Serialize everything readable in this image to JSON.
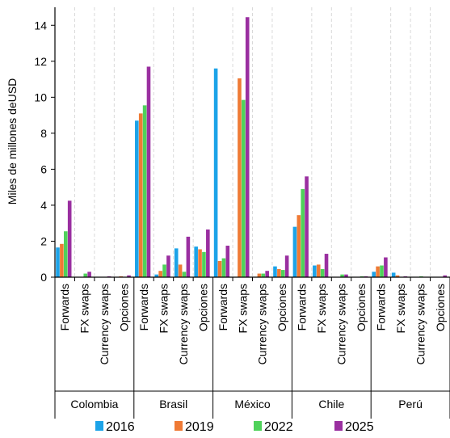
{
  "chart_data": {
    "type": "bar",
    "ylabel": "Miles de millones deUSD",
    "xlabel": "",
    "title": "",
    "ylim": [
      0,
      15
    ],
    "yticks": [
      0,
      2,
      4,
      6,
      8,
      10,
      12,
      14
    ],
    "grid": "vertical dashed",
    "legend_position": "bottom",
    "groups": [
      "Colombia",
      "Brasil",
      "México",
      "Chile",
      "Perú"
    ],
    "instruments": [
      "Forwards",
      "FX swaps",
      "Currency swaps",
      "Opciones"
    ],
    "series": [
      {
        "name": "2016",
        "color": "#1ca3e8",
        "values": [
          [
            1.65,
            0.0,
            0.0,
            0.0
          ],
          [
            8.7,
            0.15,
            1.6,
            1.7
          ],
          [
            11.6,
            0.0,
            0.0,
            0.6
          ],
          [
            2.8,
            0.65,
            0.0,
            0.0
          ],
          [
            0.3,
            0.25,
            0.0,
            0.0
          ]
        ]
      },
      {
        "name": "2019",
        "color": "#ef7a35",
        "values": [
          [
            1.85,
            0.0,
            0.0,
            0.05
          ],
          [
            9.1,
            0.35,
            0.7,
            1.55
          ],
          [
            0.9,
            11.05,
            0.2,
            0.45
          ],
          [
            3.45,
            0.7,
            0.0,
            0.0
          ],
          [
            0.6,
            0.1,
            0.0,
            0.0
          ]
        ]
      },
      {
        "name": "2022",
        "color": "#4fd25a",
        "values": [
          [
            2.55,
            0.2,
            0.0,
            0.0
          ],
          [
            9.55,
            0.7,
            0.3,
            1.4
          ],
          [
            1.05,
            9.85,
            0.2,
            0.4
          ],
          [
            4.9,
            0.45,
            0.15,
            0.05
          ],
          [
            0.65,
            0.0,
            0.05,
            0.0
          ]
        ]
      },
      {
        "name": "2025",
        "color": "#9a2fa0",
        "values": [
          [
            4.25,
            0.3,
            0.05,
            0.1
          ],
          [
            11.7,
            1.2,
            2.25,
            2.65
          ],
          [
            1.75,
            14.45,
            0.35,
            1.2
          ],
          [
            5.6,
            1.3,
            0.15,
            0.05
          ],
          [
            1.1,
            0.05,
            0.0,
            0.1
          ]
        ]
      }
    ]
  }
}
